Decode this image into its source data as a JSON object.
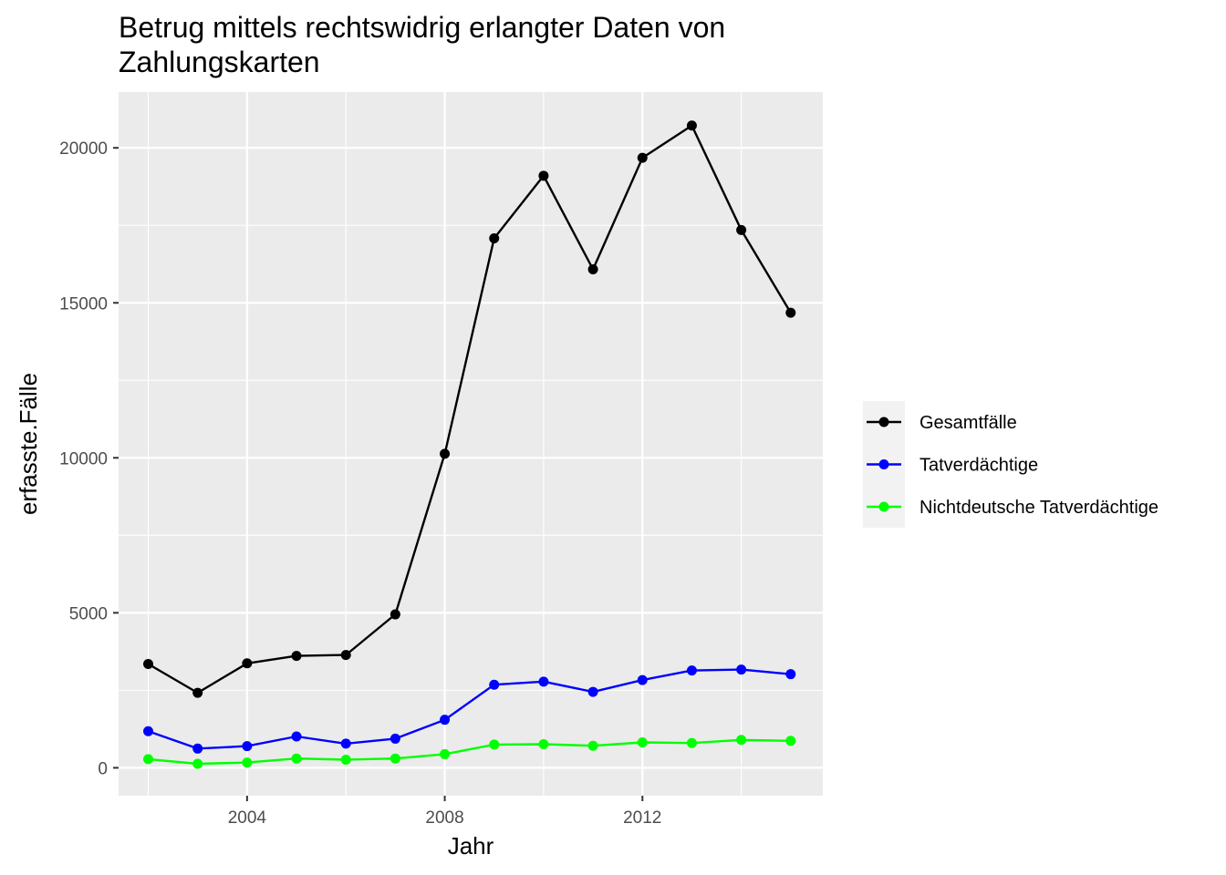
{
  "chart_data": {
    "type": "line",
    "title_lines": [
      "Betrug mittels rechtswidrig erlangter Daten von",
      "Zahlungskarten"
    ],
    "xlabel": "Jahr",
    "ylabel": "erfasste.Fälle",
    "x": [
      2002,
      2003,
      2004,
      2005,
      2006,
      2007,
      2008,
      2009,
      2010,
      2011,
      2012,
      2013,
      2014,
      2015
    ],
    "xlim": [
      2001.4,
      2015.65
    ],
    "ylim": [
      -900,
      21800
    ],
    "x_ticks": [
      2004,
      2008,
      2012
    ],
    "x_tick_labels": [
      "2004",
      "2008",
      "2012"
    ],
    "y_ticks": [
      0,
      5000,
      10000,
      15000,
      20000
    ],
    "y_tick_labels": [
      "0",
      "5000",
      "10000",
      "15000",
      "20000"
    ],
    "grid": true,
    "legend_position": "right",
    "series": [
      {
        "name": "Gesamtfälle",
        "color": "#000000",
        "values": [
          3350,
          2420,
          3370,
          3610,
          3640,
          4950,
          10130,
          17080,
          19100,
          16080,
          19680,
          20720,
          17350,
          14680
        ]
      },
      {
        "name": "Tatverdächtige",
        "color": "#0000ff",
        "values": [
          1180,
          620,
          700,
          1010,
          780,
          940,
          1550,
          2680,
          2780,
          2450,
          2830,
          3140,
          3170,
          3020
        ]
      },
      {
        "name": "Nichtdeutsche Tatverdächtige",
        "color": "#00ff00",
        "values": [
          280,
          130,
          170,
          300,
          260,
          300,
          440,
          750,
          760,
          710,
          820,
          800,
          900,
          870
        ]
      }
    ]
  }
}
